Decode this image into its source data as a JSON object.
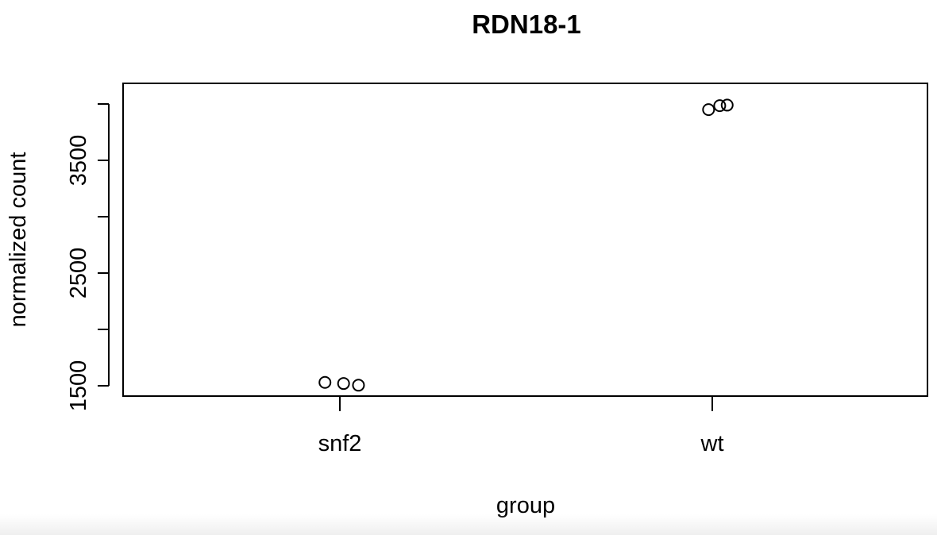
{
  "chart_data": {
    "type": "scatter",
    "title": "RDN18-1",
    "xlabel": "group",
    "ylabel": "normalized count",
    "categories": [
      "snf2",
      "wt"
    ],
    "ylim": [
      1430,
      4020
    ],
    "y_ticks": [
      1500,
      2000,
      2500,
      3000,
      3500,
      4000,
      4250
    ],
    "y_tick_labels": [
      "1500",
      "",
      "2500",
      "",
      "3500",
      "",
      ""
    ],
    "grid": false,
    "points": [
      {
        "category": "snf2",
        "jitter": -0.04,
        "y": 1530
      },
      {
        "category": "snf2",
        "jitter": 0.01,
        "y": 1520
      },
      {
        "category": "snf2",
        "jitter": 0.05,
        "y": 1505
      },
      {
        "category": "wt",
        "jitter": -0.01,
        "y": 3950
      },
      {
        "category": "wt",
        "jitter": 0.02,
        "y": 3985
      },
      {
        "category": "wt",
        "jitter": 0.04,
        "y": 3990
      }
    ],
    "marker": "open-circle",
    "color": "#000000"
  }
}
